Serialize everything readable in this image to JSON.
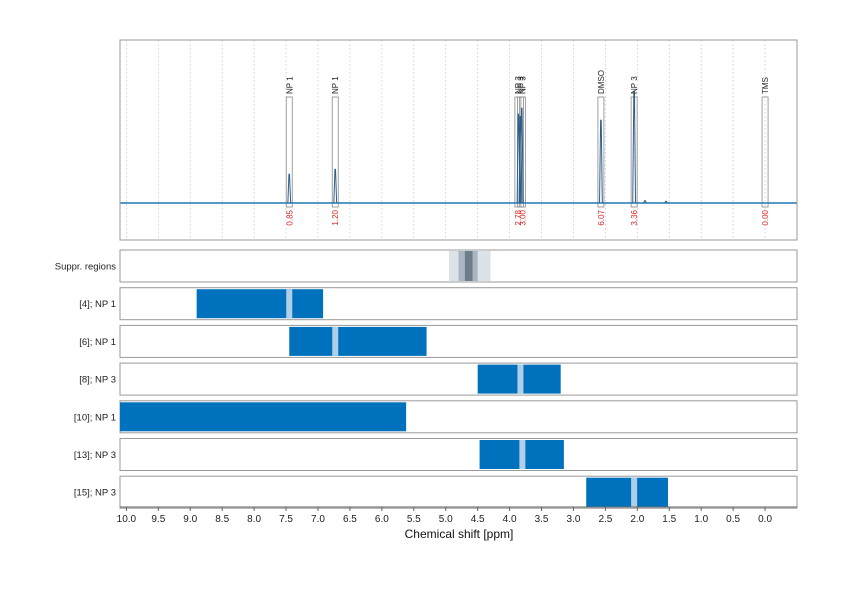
{
  "chart_data": {
    "type": "nmr-spectrum",
    "xlabel": "Chemical shift [ppm]",
    "xlim": [
      10.1,
      -0.5
    ],
    "x_ticks": [
      "10.0",
      "9.5",
      "9.0",
      "8.5",
      "8.0",
      "7.5",
      "7.0",
      "6.5",
      "6.0",
      "5.5",
      "5.0",
      "4.5",
      "4.0",
      "3.5",
      "3.0",
      "2.5",
      "2.0",
      "1.5",
      "1.0",
      "0.5",
      "0.0"
    ],
    "x_tick_values": [
      10.0,
      9.5,
      9.0,
      8.5,
      8.0,
      7.5,
      7.0,
      6.5,
      6.0,
      5.5,
      5.0,
      4.5,
      4.0,
      3.5,
      3.0,
      2.5,
      2.0,
      1.5,
      1.0,
      0.5,
      0.0
    ],
    "grid": true,
    "spectrum_peaks": [
      {
        "ppm": 7.45,
        "height": 0.24
      },
      {
        "ppm": 6.73,
        "height": 0.28
      },
      {
        "ppm": 3.86,
        "height": 0.74
      },
      {
        "ppm": 3.83,
        "height": 0.72
      },
      {
        "ppm": 3.81,
        "height": 0.79
      },
      {
        "ppm": 2.57,
        "height": 0.69
      },
      {
        "ppm": 2.05,
        "height": 0.93
      },
      {
        "ppm": 1.88,
        "height": 0.02
      },
      {
        "ppm": 1.55,
        "height": 0.015
      }
    ],
    "peak_labels": [
      {
        "ppm": 7.45,
        "label": "NP 1",
        "integral": "0.85"
      },
      {
        "ppm": 6.73,
        "label": "NP 1",
        "integral": "1.20"
      },
      {
        "ppm": 3.87,
        "label": "NP 3",
        "integral": "2.78"
      },
      {
        "ppm": 3.83,
        "label": "NP 3",
        "integral": ""
      },
      {
        "ppm": 3.8,
        "label": "NP 3",
        "integral": "3.00"
      },
      {
        "ppm": 2.57,
        "label": "DMSO",
        "integral": "6.07"
      },
      {
        "ppm": 2.05,
        "label": "NP 3",
        "integral": "3.36"
      },
      {
        "ppm": 0.0,
        "label": "TMS",
        "integral": "0.00"
      }
    ],
    "suppression": {
      "label": "Suppr. regions",
      "outer": [
        4.95,
        4.3
      ],
      "inner": [
        4.8,
        4.5
      ],
      "core": [
        4.7,
        4.58
      ]
    },
    "rows": [
      {
        "label": "[4]; NP 1",
        "range": [
          8.9,
          6.92
        ],
        "mark": 7.45
      },
      {
        "label": "[6]; NP 1",
        "range": [
          7.45,
          5.3
        ],
        "mark": 6.73
      },
      {
        "label": "[8]; NP 3",
        "range": [
          4.5,
          3.2
        ],
        "mark": 3.83
      },
      {
        "label": "[10]; NP 1",
        "range": [
          10.1,
          5.62
        ],
        "mark": null
      },
      {
        "label": "[13]; NP 3",
        "range": [
          4.47,
          3.15
        ],
        "mark": 3.8
      },
      {
        "label": "[15]; NP 3",
        "range": [
          2.8,
          1.52
        ],
        "mark": 2.05
      }
    ],
    "colors": {
      "spectrum": "#2d5f8a",
      "baseline": "#1f77b4",
      "bar": "#0072bd",
      "integral": "#d62728",
      "frame": "#999999",
      "grid": "#c8c8c8",
      "supp_outer": "#dbe2e8",
      "supp_inner": "#a9b6c1",
      "supp_core": "#6d7d8a"
    }
  }
}
